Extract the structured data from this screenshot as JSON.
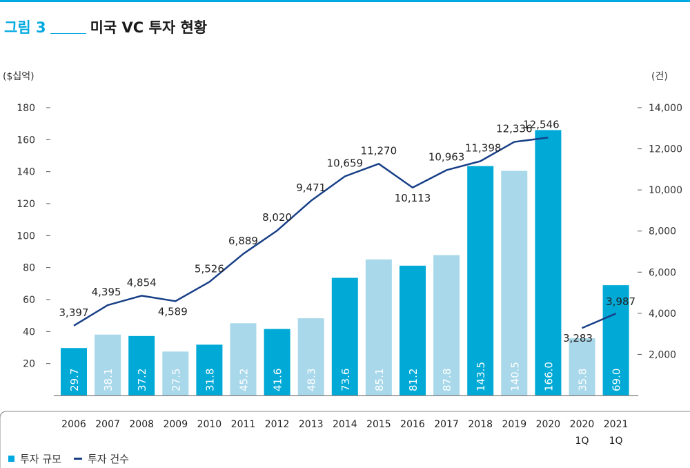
{
  "title": {
    "figure_label": "그림 3",
    "text": "미국 VC 투자 현황"
  },
  "units": {
    "left": "($십억)",
    "right": "(건)"
  },
  "legend": {
    "bar_label": "투자 규모",
    "line_label": "투자 건수"
  },
  "colors": {
    "accent": "#00a9e0",
    "bar_dark": "#00a9d6",
    "bar_light": "#a9d8ea",
    "line": "#173f87"
  },
  "chart_data": {
    "type": "bar",
    "categories": [
      "2006",
      "2007",
      "2008",
      "2009",
      "2010",
      "2011",
      "2012",
      "2013",
      "2014",
      "2015",
      "2016",
      "2017",
      "2018",
      "2019",
      "2020",
      "2020\n1Q",
      "2021\n1Q"
    ],
    "series": [
      {
        "name": "투자 규모",
        "type": "bar",
        "axis": "left",
        "values": [
          29.7,
          38.1,
          37.2,
          27.5,
          31.8,
          45.2,
          41.6,
          48.3,
          73.6,
          85.1,
          81.2,
          87.8,
          143.5,
          140.5,
          166.0,
          35.8,
          69.0
        ],
        "labels": [
          "29.7",
          "38.1",
          "37.2",
          "27.5",
          "31.8",
          "45.2",
          "41.6",
          "48.3",
          "73.6",
          "85.1",
          "81.2",
          "87.8",
          "143.5",
          "140.5",
          "166.0",
          "35.8",
          "69.0"
        ],
        "shade": [
          "dark",
          "light",
          "dark",
          "light",
          "dark",
          "light",
          "dark",
          "light",
          "dark",
          "light",
          "dark",
          "light",
          "dark",
          "light",
          "dark",
          "light",
          "dark"
        ]
      },
      {
        "name": "투자 건수",
        "type": "line",
        "axis": "right",
        "segments": [
          {
            "values": [
              3397,
              4395,
              4854,
              4589,
              5526,
              6889,
              8020,
              9471,
              10659,
              11270,
              10113,
              10963,
              11398,
              12336,
              12546
            ],
            "category_index_start": 0
          },
          {
            "values": [
              3283,
              3987
            ],
            "category_index_start": 15
          }
        ],
        "labels": [
          "3,397",
          "4,395",
          "4,854",
          "4,589",
          "5,526",
          "6,889",
          "8,020",
          "9,471",
          "10,659",
          "11,270",
          "10,113",
          "10,963",
          "11,398",
          "12,336",
          "12,546",
          "3,283",
          "3,987"
        ]
      }
    ],
    "y_left": {
      "ticks": [
        "20",
        "40",
        "60",
        "80",
        "100",
        "120",
        "140",
        "160",
        "180"
      ],
      "lim": [
        0,
        180
      ]
    },
    "y_right": {
      "ticks": [
        "2,000",
        "4,000",
        "6,000",
        "8,000",
        "10,000",
        "12,000",
        "14,000"
      ],
      "lim": [
        0,
        14000
      ]
    },
    "grid": false,
    "legend_position": "bottom-left"
  }
}
